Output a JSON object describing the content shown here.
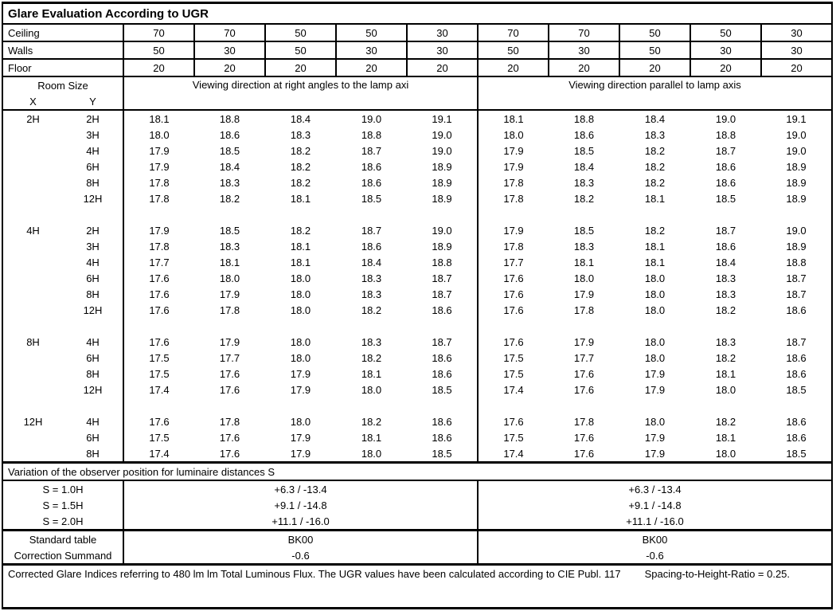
{
  "title": "Glare Evaluation According to UGR",
  "colors": {
    "border": "#000000",
    "text": "#000000",
    "background": "#ffffff"
  },
  "surface_rows": [
    {
      "label": "Ceiling",
      "values": [
        "70",
        "70",
        "50",
        "50",
        "30",
        "70",
        "70",
        "50",
        "50",
        "30"
      ]
    },
    {
      "label": "Walls",
      "values": [
        "50",
        "30",
        "50",
        "30",
        "30",
        "50",
        "30",
        "50",
        "30",
        "30"
      ]
    },
    {
      "label": "Floor",
      "values": [
        "20",
        "20",
        "20",
        "20",
        "20",
        "20",
        "20",
        "20",
        "20",
        "20"
      ]
    }
  ],
  "header": {
    "room_size": "Room Size",
    "x_label": "X",
    "y_label": "Y",
    "left_direction": "Viewing direction at right angles to the lamp axi",
    "right_direction": "Viewing direction parallel to lamp axis"
  },
  "ugr_blocks": [
    {
      "x": "2H",
      "rows": [
        {
          "y": "2H",
          "left": [
            "18.1",
            "18.8",
            "18.4",
            "19.0",
            "19.1"
          ],
          "right": [
            "18.1",
            "18.8",
            "18.4",
            "19.0",
            "19.1"
          ]
        },
        {
          "y": "3H",
          "left": [
            "18.0",
            "18.6",
            "18.3",
            "18.8",
            "19.0"
          ],
          "right": [
            "18.0",
            "18.6",
            "18.3",
            "18.8",
            "19.0"
          ]
        },
        {
          "y": "4H",
          "left": [
            "17.9",
            "18.5",
            "18.2",
            "18.7",
            "19.0"
          ],
          "right": [
            "17.9",
            "18.5",
            "18.2",
            "18.7",
            "19.0"
          ]
        },
        {
          "y": "6H",
          "left": [
            "17.9",
            "18.4",
            "18.2",
            "18.6",
            "18.9"
          ],
          "right": [
            "17.9",
            "18.4",
            "18.2",
            "18.6",
            "18.9"
          ]
        },
        {
          "y": "8H",
          "left": [
            "17.8",
            "18.3",
            "18.2",
            "18.6",
            "18.9"
          ],
          "right": [
            "17.8",
            "18.3",
            "18.2",
            "18.6",
            "18.9"
          ]
        },
        {
          "y": "12H",
          "left": [
            "17.8",
            "18.2",
            "18.1",
            "18.5",
            "18.9"
          ],
          "right": [
            "17.8",
            "18.2",
            "18.1",
            "18.5",
            "18.9"
          ]
        }
      ]
    },
    {
      "x": "4H",
      "rows": [
        {
          "y": "2H",
          "left": [
            "17.9",
            "18.5",
            "18.2",
            "18.7",
            "19.0"
          ],
          "right": [
            "17.9",
            "18.5",
            "18.2",
            "18.7",
            "19.0"
          ]
        },
        {
          "y": "3H",
          "left": [
            "17.8",
            "18.3",
            "18.1",
            "18.6",
            "18.9"
          ],
          "right": [
            "17.8",
            "18.3",
            "18.1",
            "18.6",
            "18.9"
          ]
        },
        {
          "y": "4H",
          "left": [
            "17.7",
            "18.1",
            "18.1",
            "18.4",
            "18.8"
          ],
          "right": [
            "17.7",
            "18.1",
            "18.1",
            "18.4",
            "18.8"
          ]
        },
        {
          "y": "6H",
          "left": [
            "17.6",
            "18.0",
            "18.0",
            "18.3",
            "18.7"
          ],
          "right": [
            "17.6",
            "18.0",
            "18.0",
            "18.3",
            "18.7"
          ]
        },
        {
          "y": "8H",
          "left": [
            "17.6",
            "17.9",
            "18.0",
            "18.3",
            "18.7"
          ],
          "right": [
            "17.6",
            "17.9",
            "18.0",
            "18.3",
            "18.7"
          ]
        },
        {
          "y": "12H",
          "left": [
            "17.6",
            "17.8",
            "18.0",
            "18.2",
            "18.6"
          ],
          "right": [
            "17.6",
            "17.8",
            "18.0",
            "18.2",
            "18.6"
          ]
        }
      ]
    },
    {
      "x": "8H",
      "rows": [
        {
          "y": "4H",
          "left": [
            "17.6",
            "17.9",
            "18.0",
            "18.3",
            "18.7"
          ],
          "right": [
            "17.6",
            "17.9",
            "18.0",
            "18.3",
            "18.7"
          ]
        },
        {
          "y": "6H",
          "left": [
            "17.5",
            "17.7",
            "18.0",
            "18.2",
            "18.6"
          ],
          "right": [
            "17.5",
            "17.7",
            "18.0",
            "18.2",
            "18.6"
          ]
        },
        {
          "y": "8H",
          "left": [
            "17.5",
            "17.6",
            "17.9",
            "18.1",
            "18.6"
          ],
          "right": [
            "17.5",
            "17.6",
            "17.9",
            "18.1",
            "18.6"
          ]
        },
        {
          "y": "12H",
          "left": [
            "17.4",
            "17.6",
            "17.9",
            "18.0",
            "18.5"
          ],
          "right": [
            "17.4",
            "17.6",
            "17.9",
            "18.0",
            "18.5"
          ]
        }
      ]
    },
    {
      "x": "12H",
      "rows": [
        {
          "y": "4H",
          "left": [
            "17.6",
            "17.8",
            "18.0",
            "18.2",
            "18.6"
          ],
          "right": [
            "17.6",
            "17.8",
            "18.0",
            "18.2",
            "18.6"
          ]
        },
        {
          "y": "6H",
          "left": [
            "17.5",
            "17.6",
            "17.9",
            "18.1",
            "18.6"
          ],
          "right": [
            "17.5",
            "17.6",
            "17.9",
            "18.1",
            "18.6"
          ]
        },
        {
          "y": "8H",
          "left": [
            "17.4",
            "17.6",
            "17.9",
            "18.0",
            "18.5"
          ],
          "right": [
            "17.4",
            "17.6",
            "17.9",
            "18.0",
            "18.5"
          ]
        }
      ]
    }
  ],
  "variation": {
    "heading": "Variation of the observer position for luminaire distances S",
    "rows": [
      {
        "label": "S = 1.0H",
        "left": "+6.3 / -13.4",
        "right": "+6.3 / -13.4"
      },
      {
        "label": "S = 1.5H",
        "left": "+9.1 / -14.8",
        "right": "+9.1 / -14.8"
      },
      {
        "label": "S = 2.0H",
        "left": "+11.1 / -16.0",
        "right": "+11.1 / -16.0"
      }
    ]
  },
  "summary_rows": [
    {
      "label": "Standard table",
      "left": "BK00",
      "right": "BK00"
    },
    {
      "label": "Correction Summand",
      "left": "-0.6",
      "right": "-0.6"
    }
  ],
  "footer": {
    "text": "Corrected Glare Indices referring to 480 lm lm Total Luminous Flux. The UGR values have been calculated according to CIE Publ. 117",
    "ratio": "Spacing-to-Height-Ratio = 0.25."
  }
}
